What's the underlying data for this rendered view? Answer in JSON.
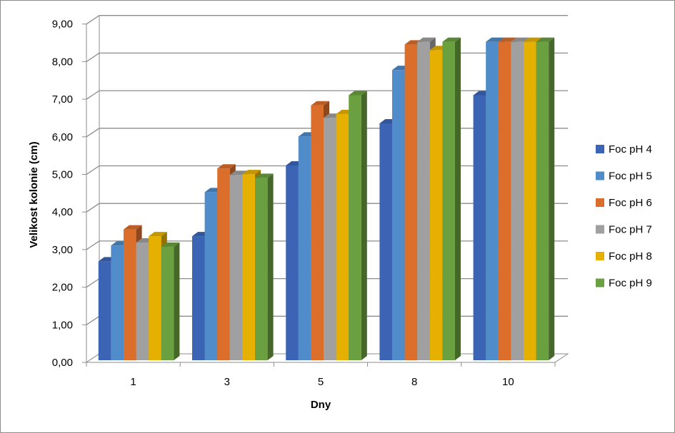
{
  "chart_data": {
    "type": "bar",
    "style": "3d-clustered",
    "title": "",
    "xlabel": "Dny",
    "ylabel": "Velikost kolonie (cm)",
    "categories": [
      "1",
      "3",
      "5",
      "8",
      "10"
    ],
    "ylim": [
      0,
      9
    ],
    "yticks": [
      "0,00",
      "1,00",
      "2,00",
      "3,00",
      "4,00",
      "5,00",
      "6,00",
      "7,00",
      "8,00",
      "9,00"
    ],
    "grid": true,
    "legend_position": "right",
    "series": [
      {
        "name": "Foc pH 4",
        "color": "#3c64b4",
        "values": [
          2.63,
          3.3,
          5.18,
          6.3,
          7.05
        ]
      },
      {
        "name": "Foc pH 5",
        "color": "#4f8cc9",
        "values": [
          3.05,
          4.47,
          5.95,
          7.72,
          8.47
        ]
      },
      {
        "name": "Foc pH 6",
        "color": "#dc6e2c",
        "values": [
          3.48,
          5.1,
          6.78,
          8.4,
          8.47
        ]
      },
      {
        "name": "Foc pH 7",
        "color": "#a0a0a0",
        "values": [
          3.13,
          4.93,
          6.45,
          8.47,
          8.47
        ]
      },
      {
        "name": "Foc pH 8",
        "color": "#e6b000",
        "values": [
          3.3,
          4.95,
          6.55,
          8.25,
          8.47
        ]
      },
      {
        "name": "Foc pH 9",
        "color": "#6aa040",
        "values": [
          3.02,
          4.85,
          7.05,
          8.47,
          8.47
        ]
      }
    ]
  }
}
